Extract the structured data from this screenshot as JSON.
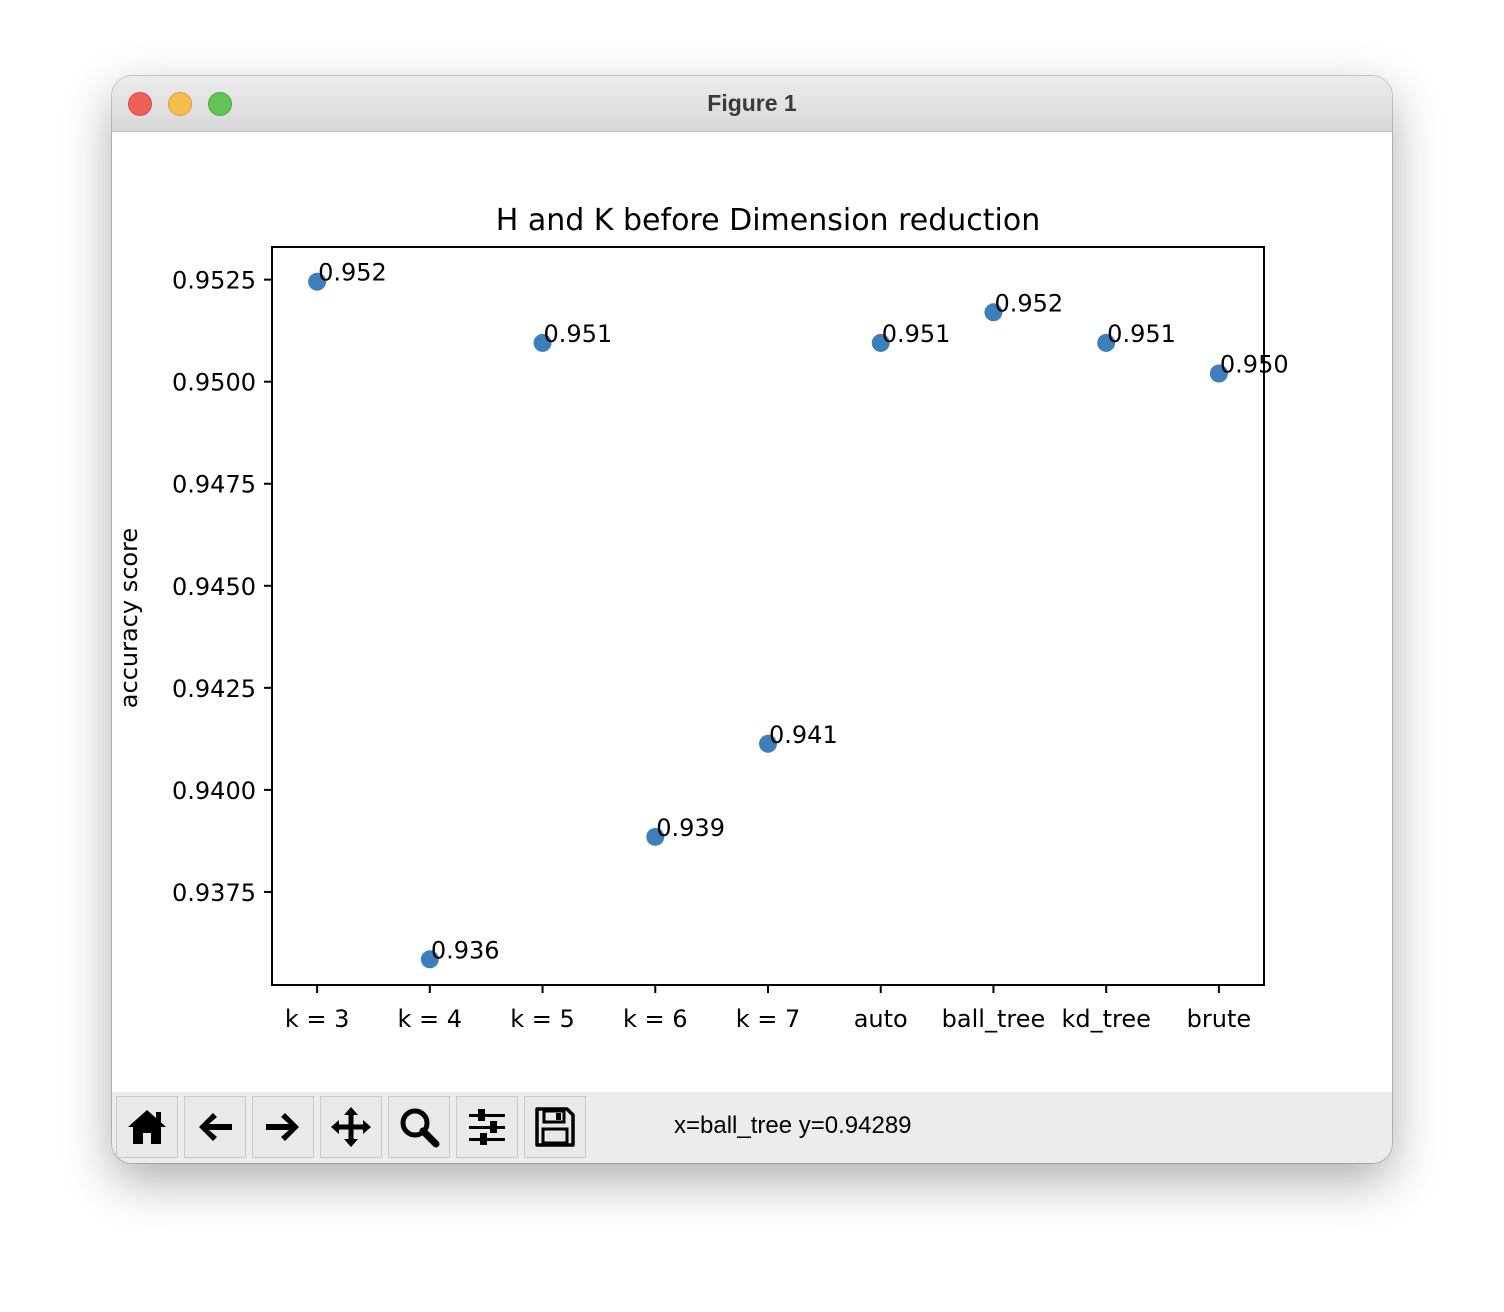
{
  "window": {
    "title": "Figure 1"
  },
  "toolbar": {
    "buttons": [
      {
        "name": "home-icon"
      },
      {
        "name": "back-icon"
      },
      {
        "name": "forward-icon"
      },
      {
        "name": "pan-icon"
      },
      {
        "name": "zoom-icon"
      },
      {
        "name": "configure-icon"
      },
      {
        "name": "save-icon"
      }
    ],
    "status": "x=ball_tree y=0.94289"
  },
  "chart_data": {
    "type": "scatter",
    "title": "H and K before Dimension reduction",
    "xlabel": "",
    "ylabel": "accuracy score",
    "categories": [
      "k = 3",
      "k = 4",
      "k = 5",
      "k = 6",
      "k = 7",
      "auto",
      "ball_tree",
      "kd_tree",
      "brute"
    ],
    "values": [
      0.95245,
      0.93585,
      0.95095,
      0.93885,
      0.94113,
      0.95095,
      0.9517,
      0.95095,
      0.9502
    ],
    "labels": [
      "0.952",
      "0.936",
      "0.951",
      "0.939",
      "0.941",
      "0.951",
      "0.952",
      "0.951",
      "0.950"
    ],
    "ylim": [
      0.93522,
      0.9533
    ],
    "yticks": [
      0.9375,
      0.94,
      0.9425,
      0.945,
      0.9475,
      0.95,
      0.9525
    ],
    "ytick_labels": [
      "0.9375",
      "0.9400",
      "0.9425",
      "0.9450",
      "0.9475",
      "0.9500",
      "0.9525"
    ],
    "grid": false,
    "color": "#3d7fbb"
  }
}
